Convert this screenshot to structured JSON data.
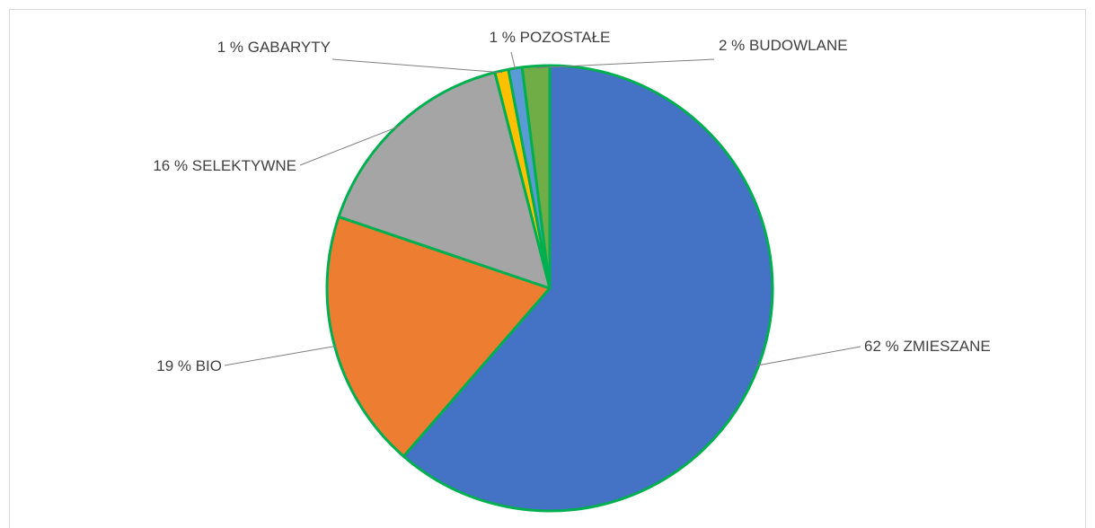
{
  "chart_data": {
    "type": "pie",
    "slices": [
      {
        "category": "ZMIESZANE",
        "value": 62,
        "label": "62 % ZMIESZANE",
        "color": "#4472C4"
      },
      {
        "category": "BIO",
        "value": 19,
        "label": "19 % BIO",
        "color": "#ED7D31"
      },
      {
        "category": "SELEKTYWNE",
        "value": 16,
        "label": "16 % SELEKTYWNE",
        "color": "#A5A5A5"
      },
      {
        "category": "GABARYTY",
        "value": 1,
        "label": "1 % GABARYTY",
        "color": "#FFC000"
      },
      {
        "category": "POZOSTAŁE",
        "value": 1,
        "label": "1 % POZOSTAŁE",
        "color": "#5B9BD5"
      },
      {
        "category": "BUDOWLANE",
        "value": 2,
        "label": "2 % BUDOWLANE",
        "color": "#70AD47"
      }
    ],
    "slice_border_color": "#00B050",
    "start": "12 o'clock",
    "direction": "clockwise",
    "legend": "none",
    "title": ""
  }
}
